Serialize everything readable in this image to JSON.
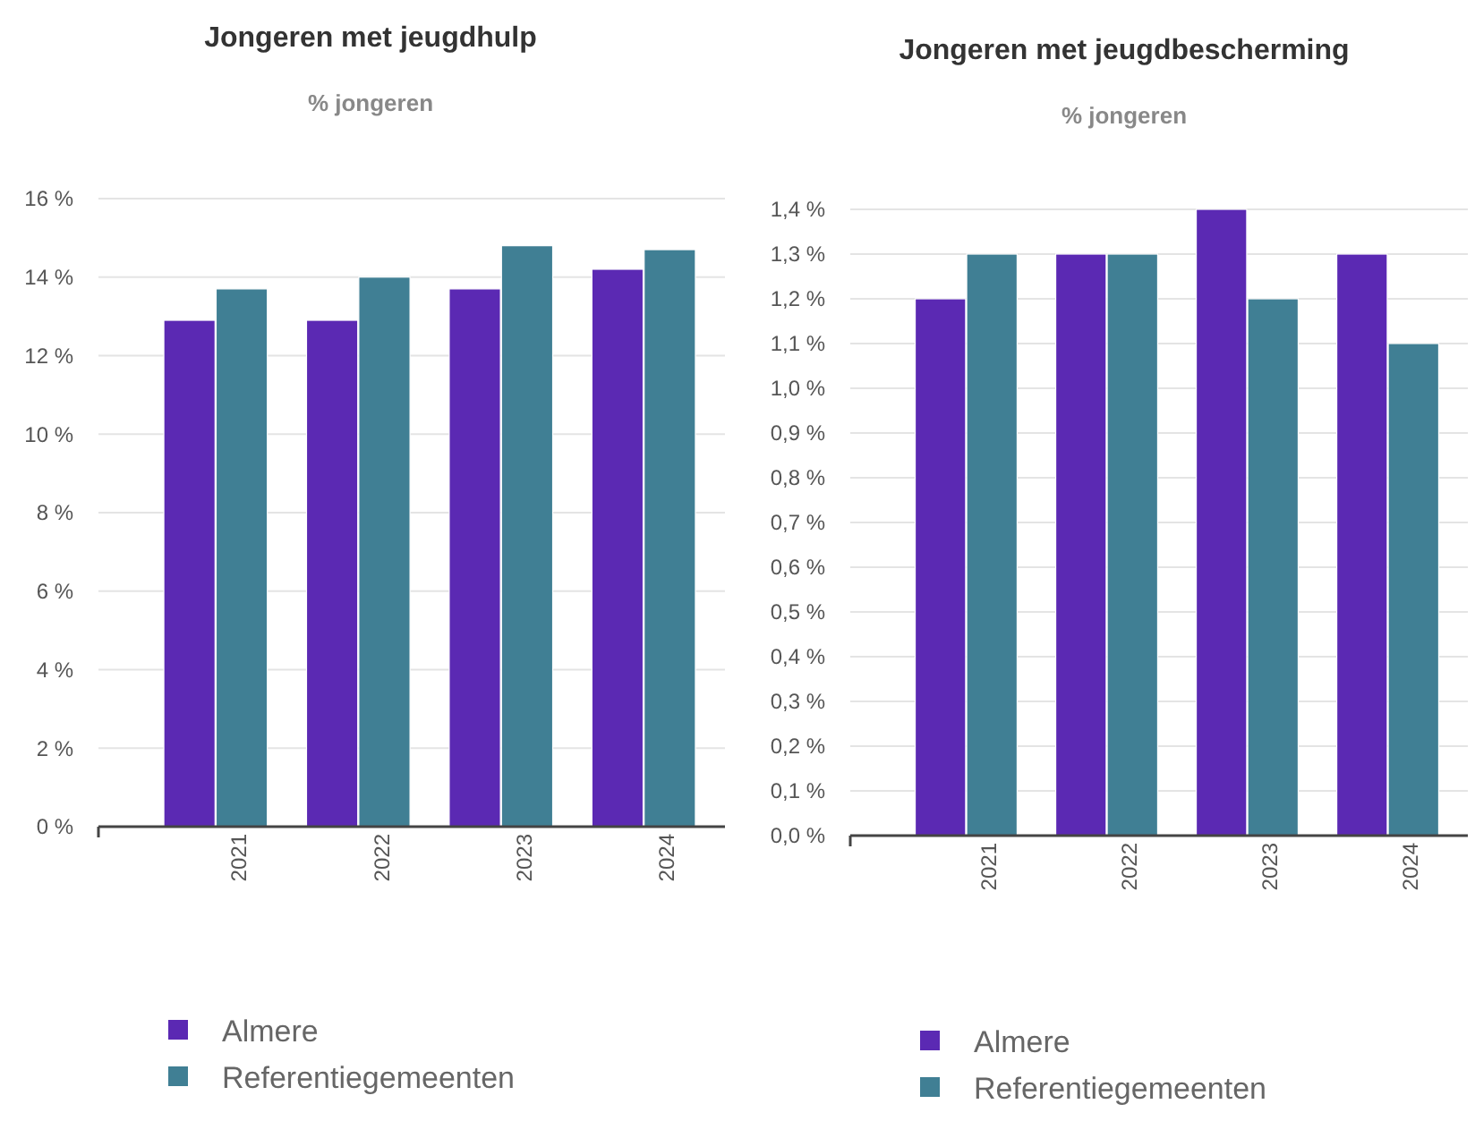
{
  "chart_data": [
    {
      "type": "bar",
      "title": "Jongeren met jeugdhulp",
      "subtitle": "% jongeren",
      "categories": [
        "2021",
        "2022",
        "2023",
        "2024"
      ],
      "series": [
        {
          "name": "Almere",
          "color": "#5b29b3",
          "values": [
            12.9,
            12.9,
            13.7,
            14.2
          ]
        },
        {
          "name": "Referentiegemeenten",
          "color": "#407f94",
          "values": [
            13.7,
            14.0,
            14.8,
            14.7
          ]
        }
      ],
      "ylim": [
        0,
        16
      ],
      "yticks": [
        {
          "value": 0,
          "label": "0 %"
        },
        {
          "value": 2,
          "label": "2 %"
        },
        {
          "value": 4,
          "label": "4 %"
        },
        {
          "value": 6,
          "label": "6 %"
        },
        {
          "value": 8,
          "label": "8 %"
        },
        {
          "value": 10,
          "label": "10 %"
        },
        {
          "value": 12,
          "label": "12 %"
        },
        {
          "value": 14,
          "label": "14 %"
        },
        {
          "value": 16,
          "label": "16 %"
        }
      ],
      "grid": "y",
      "legend": "bottom"
    },
    {
      "type": "bar",
      "title": "Jongeren met jeugdbescherming",
      "subtitle": "% jongeren",
      "categories": [
        "2021",
        "2022",
        "2023",
        "2024"
      ],
      "series": [
        {
          "name": "Almere",
          "color": "#5b29b3",
          "values": [
            1.2,
            1.3,
            1.4,
            1.3
          ]
        },
        {
          "name": "Referentiegemeenten",
          "color": "#407f94",
          "values": [
            1.3,
            1.3,
            1.2,
            1.1
          ]
        }
      ],
      "ylim": [
        0,
        1.4
      ],
      "yticks": [
        {
          "value": 0,
          "label": "0,0 %"
        },
        {
          "value": 0.1,
          "label": "0,1 %"
        },
        {
          "value": 0.2,
          "label": "0,2 %"
        },
        {
          "value": 0.3,
          "label": "0,3 %"
        },
        {
          "value": 0.4,
          "label": "0,4 %"
        },
        {
          "value": 0.5,
          "label": "0,5 %"
        },
        {
          "value": 0.6,
          "label": "0,6 %"
        },
        {
          "value": 0.7,
          "label": "0,7 %"
        },
        {
          "value": 0.8,
          "label": "0,8 %"
        },
        {
          "value": 0.9,
          "label": "0,9 %"
        },
        {
          "value": 1.0,
          "label": "1,0 %"
        },
        {
          "value": 1.1,
          "label": "1,1 %"
        },
        {
          "value": 1.2,
          "label": "1,2 %"
        },
        {
          "value": 1.3,
          "label": "1,3 %"
        },
        {
          "value": 1.4,
          "label": "1,4 %"
        }
      ],
      "grid": "y",
      "legend": "bottom"
    }
  ]
}
